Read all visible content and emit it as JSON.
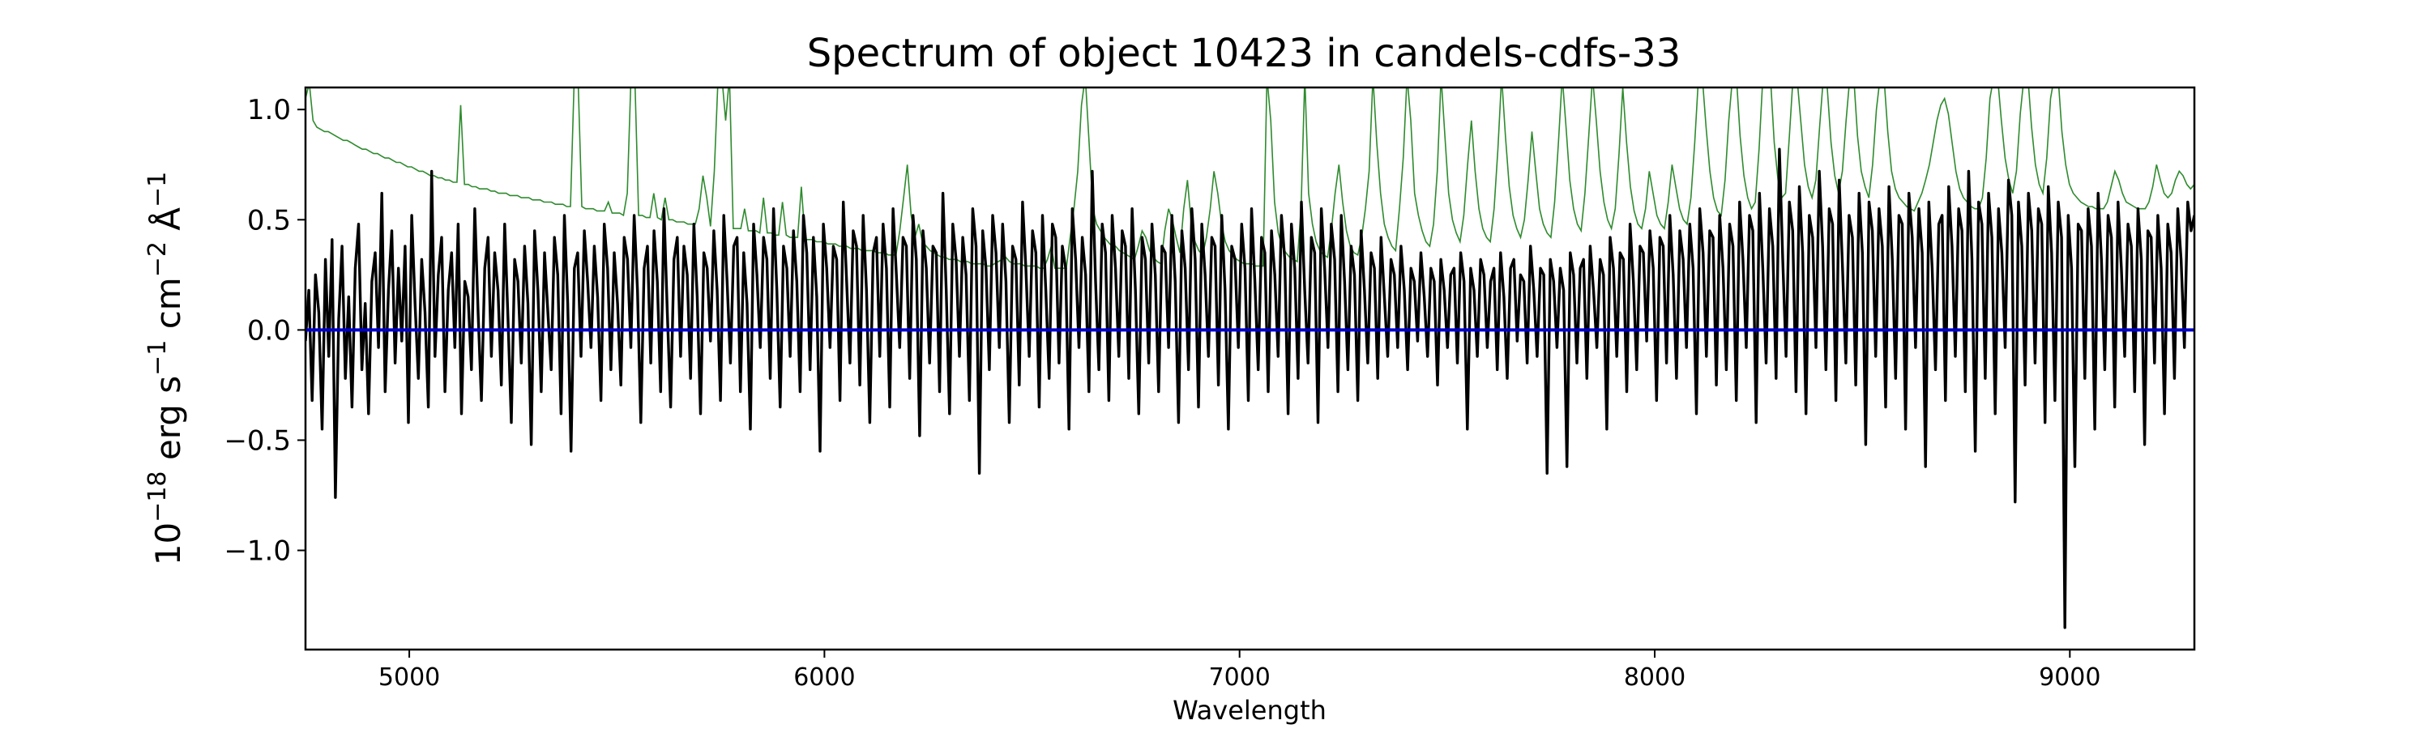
{
  "chart_data": {
    "type": "line",
    "title": "Spectrum of object 10423 in candels-cdfs-33",
    "xlabel": "Wavelength",
    "ylabel": {
      "base": "10",
      "base_exp": "−18",
      "unit1": " erg s",
      "unit1_exp": "−1",
      "unit2": " cm",
      "unit2_exp": "−2",
      "unit3": " Å",
      "unit3_exp": "−1"
    },
    "xlim": [
      4750,
      9300
    ],
    "ylim": [
      -1.45,
      1.1
    ],
    "x_ticks": [
      5000,
      6000,
      7000,
      8000,
      9000
    ],
    "x_tick_labels": [
      "5000",
      "6000",
      "7000",
      "8000",
      "9000"
    ],
    "y_ticks": [
      -1.0,
      -0.5,
      0.0,
      0.5,
      1.0
    ],
    "y_tick_labels": [
      "−1.0",
      "−0.5",
      "0.0",
      "0.5",
      "1.0"
    ],
    "grid": false,
    "colors": {
      "flux": "#000000",
      "error": "#2e8b2e",
      "zero": "#0000cc"
    },
    "series": [
      {
        "role": "flux",
        "x_start": 4750,
        "x_end": 9300,
        "values": [
          -0.05,
          0.18,
          -0.32,
          0.25,
          0.08,
          -0.45,
          0.32,
          -0.12,
          0.41,
          -0.76,
          0.05,
          0.38,
          -0.22,
          0.15,
          -0.35,
          0.28,
          0.48,
          -0.18,
          0.12,
          -0.38,
          0.22,
          0.35,
          -0.08,
          0.62,
          -0.28,
          0.18,
          0.45,
          -0.15,
          0.28,
          -0.05,
          0.38,
          -0.42,
          0.52,
          0.12,
          -0.22,
          0.32,
          0.08,
          -0.35,
          0.72,
          -0.12,
          0.25,
          0.42,
          -0.28,
          0.18,
          0.35,
          -0.08,
          0.48,
          -0.38,
          0.22,
          0.15,
          -0.18,
          0.55,
          0.08,
          -0.32,
          0.28,
          0.42,
          -0.12,
          0.35,
          0.18,
          -0.25,
          0.48,
          0.05,
          -0.42,
          0.32,
          0.22,
          -0.15,
          0.38,
          0.12,
          -0.52,
          0.45,
          0.18,
          -0.28,
          0.35,
          0.08,
          -0.18,
          0.42,
          0.25,
          -0.38,
          0.52,
          0.12,
          -0.55,
          0.28,
          0.35,
          -0.12,
          0.45,
          0.22,
          -0.08,
          0.38,
          0.15,
          -0.32,
          0.48,
          0.28,
          -0.18,
          0.35,
          0.12,
          -0.25,
          0.42,
          0.32,
          -0.08,
          0.52,
          0.18,
          -0.42,
          0.28,
          0.38,
          -0.15,
          0.45,
          0.22,
          -0.28,
          0.55,
          0.08,
          -0.35,
          0.32,
          0.42,
          -0.12,
          0.38,
          0.25,
          -0.22,
          0.48,
          0.15,
          -0.38,
          0.35,
          0.28,
          -0.05,
          0.45,
          0.18,
          -0.32,
          0.52,
          0.22,
          -0.15,
          0.38,
          0.42,
          -0.28,
          0.35,
          0.12,
          -0.45,
          0.48,
          0.25,
          -0.08,
          0.42,
          0.32,
          -0.22,
          0.55,
          0.18,
          -0.35,
          0.38,
          0.28,
          -0.12,
          0.45,
          0.22,
          -0.28,
          0.52,
          0.35,
          -0.18,
          0.42,
          0.15,
          -0.55,
          0.48,
          0.28,
          -0.08,
          0.38,
          0.32,
          -0.32,
          0.58,
          0.22,
          -0.15,
          0.45,
          0.38,
          -0.25,
          0.52,
          0.18,
          -0.42,
          0.35,
          0.42,
          -0.12,
          0.48,
          0.28,
          -0.35,
          0.55,
          0.25,
          -0.08,
          0.42,
          0.38,
          -0.22,
          0.52,
          0.32,
          -0.48,
          0.45,
          0.28,
          -0.15,
          0.38,
          0.35,
          -0.28,
          0.62,
          0.18,
          -0.38,
          0.48,
          0.32,
          -0.12,
          0.42,
          0.25,
          -0.32,
          0.55,
          0.38,
          -0.65,
          0.45,
          0.28,
          -0.18,
          0.52,
          0.35,
          -0.08,
          0.48,
          0.22,
          -0.42,
          0.38,
          0.32,
          -0.25,
          0.58,
          0.28,
          -0.12,
          0.45,
          0.35,
          -0.35,
          0.52,
          0.18,
          -0.22,
          0.48,
          0.42,
          -0.15,
          0.38,
          0.28,
          -0.45,
          0.55,
          0.32,
          -0.08,
          0.42,
          0.25,
          -0.28,
          0.72,
          0.22,
          -0.18,
          0.48,
          0.35,
          -0.32,
          0.52,
          0.28,
          -0.12,
          0.45,
          0.38,
          -0.22,
          0.55,
          0.18,
          -0.38,
          0.42,
          0.32,
          -0.15,
          0.48,
          0.25,
          -0.28,
          0.38,
          0.35,
          -0.08,
          0.52,
          0.22,
          -0.42,
          0.45,
          0.28,
          -0.18,
          0.55,
          0.32,
          -0.35,
          0.48,
          0.25,
          -0.12,
          0.42,
          0.38,
          -0.25,
          0.52,
          0.18,
          -0.45,
          0.38,
          0.32,
          -0.08,
          0.48,
          0.28,
          -0.32,
          0.55,
          0.22,
          -0.18,
          0.42,
          0.35,
          -0.28,
          0.45,
          0.25,
          -0.12,
          0.52,
          0.32,
          -0.38,
          0.48,
          0.28,
          -0.22,
          0.58,
          0.18,
          -0.15,
          0.42,
          0.35,
          -0.42,
          0.55,
          0.28,
          -0.08,
          0.48,
          0.32,
          -0.28,
          0.52,
          0.22,
          -0.18,
          0.38,
          0.25,
          -0.32,
          0.45,
          0.18,
          -0.15,
          0.35,
          0.28,
          -0.22,
          0.42,
          0.15,
          -0.12,
          0.32,
          0.25,
          -0.08,
          0.38,
          0.18,
          -0.18,
          0.28,
          0.22,
          -0.05,
          0.35,
          0.15,
          -0.12,
          0.28,
          0.22,
          -0.25,
          0.32,
          0.18,
          -0.08,
          0.25,
          0.28,
          -0.15,
          0.35,
          0.22,
          -0.45,
          0.28,
          0.18,
          -0.12,
          0.32,
          0.25,
          -0.08,
          0.22,
          0.28,
          -0.18,
          0.35,
          0.15,
          -0.22,
          0.28,
          0.32,
          -0.05,
          0.25,
          0.22,
          -0.15,
          0.38,
          0.18,
          -0.12,
          0.28,
          0.25,
          -0.65,
          0.32,
          0.22,
          -0.08,
          0.28,
          0.18,
          -0.62,
          0.35,
          0.25,
          -0.15,
          0.28,
          0.32,
          -0.22,
          0.38,
          0.18,
          -0.08,
          0.32,
          0.25,
          -0.45,
          0.42,
          0.28,
          -0.12,
          0.35,
          0.32,
          -0.28,
          0.48,
          0.22,
          -0.18,
          0.38,
          0.35,
          -0.05,
          0.45,
          0.28,
          -0.32,
          0.42,
          0.38,
          -0.15,
          0.52,
          0.25,
          -0.22,
          0.45,
          0.32,
          -0.08,
          0.48,
          0.28,
          -0.38,
          0.55,
          0.35,
          -0.12,
          0.45,
          0.42,
          -0.25,
          0.52,
          0.28,
          -0.18,
          0.48,
          0.38,
          -0.32,
          0.58,
          0.32,
          -0.08,
          0.52,
          0.45,
          -0.42,
          0.62,
          0.28,
          -0.15,
          0.55,
          0.38,
          -0.22,
          0.82,
          0.32,
          -0.12,
          0.58,
          0.45,
          -0.28,
          0.65,
          0.35,
          -0.38,
          0.52,
          0.42,
          -0.08,
          0.72,
          0.38,
          -0.18,
          0.55,
          0.48,
          -0.32,
          0.68,
          0.28,
          -0.15,
          0.52,
          0.42,
          -0.25,
          0.62,
          0.35,
          -0.52,
          0.58,
          0.45,
          -0.12,
          0.55,
          0.38,
          -0.35,
          0.65,
          0.32,
          -0.22,
          0.52,
          0.48,
          -0.45,
          0.62,
          0.42,
          -0.08,
          0.55,
          0.35,
          -0.62,
          0.58,
          0.28,
          -0.18,
          0.48,
          0.52,
          -0.32,
          0.65,
          0.38,
          -0.12,
          0.55,
          0.45,
          -0.28,
          0.72,
          0.32,
          -0.55,
          0.58,
          0.48,
          -0.22,
          0.62,
          0.42,
          -0.38,
          0.55,
          0.35,
          -0.08,
          0.68,
          0.52,
          -0.78,
          0.58,
          0.38,
          -0.25,
          0.62,
          0.45,
          -0.15,
          0.55,
          0.48,
          -0.42,
          0.65,
          0.35,
          -0.32,
          0.58,
          0.42,
          -1.35,
          0.52,
          0.28,
          -0.62,
          0.48,
          0.45,
          -0.22,
          0.55,
          0.38,
          -0.45,
          0.62,
          0.32,
          -0.18,
          0.52,
          0.42,
          -0.35,
          0.58,
          0.28,
          -0.12,
          0.48,
          0.38,
          -0.28,
          0.55,
          0.32,
          -0.52,
          0.45,
          0.42,
          -0.15,
          0.52,
          0.28,
          -0.38,
          0.48,
          0.35,
          -0.22,
          0.55,
          0.32,
          -0.08,
          0.58,
          0.45,
          0.52
        ]
      },
      {
        "role": "error",
        "x_start": 4750,
        "x_end": 9300,
        "values": [
          1.05,
          1.12,
          0.95,
          0.92,
          0.91,
          0.9,
          0.9,
          0.89,
          0.88,
          0.87,
          0.86,
          0.86,
          0.85,
          0.84,
          0.83,
          0.82,
          0.82,
          0.81,
          0.8,
          0.8,
          0.79,
          0.78,
          0.78,
          0.77,
          0.76,
          0.76,
          0.75,
          0.74,
          0.74,
          0.73,
          0.72,
          0.72,
          0.71,
          0.7,
          0.7,
          0.69,
          0.69,
          0.68,
          0.68,
          0.67,
          0.67,
          1.02,
          0.66,
          0.66,
          0.65,
          0.65,
          0.64,
          0.64,
          0.64,
          0.63,
          0.63,
          0.62,
          0.62,
          0.62,
          0.61,
          0.61,
          0.61,
          0.6,
          0.6,
          0.6,
          0.59,
          0.59,
          0.59,
          0.58,
          0.58,
          0.58,
          0.57,
          0.57,
          0.57,
          0.56,
          0.56,
          1.15,
          1.15,
          0.56,
          0.55,
          0.55,
          0.55,
          0.54,
          0.54,
          0.54,
          0.58,
          0.53,
          0.53,
          0.53,
          0.52,
          0.62,
          1.15,
          1.15,
          0.52,
          0.52,
          0.51,
          0.51,
          0.62,
          0.51,
          0.5,
          0.6,
          0.5,
          0.5,
          0.49,
          0.49,
          0.49,
          0.48,
          0.48,
          0.48,
          0.55,
          0.7,
          0.6,
          0.47,
          0.72,
          1.15,
          1.15,
          0.95,
          1.15,
          0.46,
          0.46,
          0.46,
          0.55,
          0.45,
          0.45,
          0.45,
          0.44,
          0.6,
          0.44,
          0.44,
          0.43,
          0.43,
          0.58,
          0.43,
          0.42,
          0.42,
          0.42,
          0.65,
          0.41,
          0.41,
          0.41,
          0.4,
          0.4,
          0.4,
          0.39,
          0.39,
          0.39,
          0.38,
          0.38,
          0.38,
          0.37,
          0.37,
          0.37,
          0.36,
          0.36,
          0.36,
          0.36,
          0.35,
          0.35,
          0.35,
          0.34,
          0.34,
          0.34,
          0.45,
          0.6,
          0.75,
          0.52,
          0.42,
          0.48,
          0.4,
          0.38,
          0.36,
          0.35,
          0.34,
          0.33,
          0.33,
          0.32,
          0.32,
          0.32,
          0.31,
          0.31,
          0.31,
          0.3,
          0.3,
          0.3,
          0.3,
          0.29,
          0.29,
          0.3,
          0.31,
          0.32,
          0.33,
          0.31,
          0.3,
          0.3,
          0.3,
          0.29,
          0.29,
          0.29,
          0.29,
          0.28,
          0.28,
          0.32,
          0.38,
          0.28,
          0.28,
          0.28,
          0.28,
          0.42,
          0.55,
          0.72,
          1.02,
          1.15,
          0.85,
          0.55,
          0.48,
          0.45,
          0.42,
          0.4,
          0.38,
          0.38,
          0.36,
          0.35,
          0.34,
          0.33,
          0.32,
          0.38,
          0.45,
          0.42,
          0.36,
          0.33,
          0.31,
          0.3,
          0.45,
          0.55,
          0.5,
          0.42,
          0.35,
          0.55,
          0.68,
          0.48,
          0.4,
          0.36,
          0.34,
          0.42,
          0.55,
          0.72,
          0.62,
          0.48,
          0.4,
          0.36,
          0.34,
          0.32,
          0.31,
          0.3,
          0.3,
          0.3,
          0.29,
          0.29,
          0.29,
          1.15,
          0.95,
          0.58,
          0.44,
          0.38,
          0.35,
          0.33,
          0.32,
          0.31,
          0.55,
          1.15,
          0.62,
          0.48,
          0.4,
          0.36,
          0.34,
          0.33,
          0.45,
          0.62,
          0.75,
          0.58,
          0.45,
          0.38,
          0.35,
          0.34,
          0.42,
          0.55,
          0.72,
          1.15,
          0.85,
          0.62,
          0.48,
          0.42,
          0.38,
          0.36,
          0.55,
          0.78,
          1.15,
          0.95,
          0.62,
          0.52,
          0.45,
          0.4,
          0.38,
          0.48,
          0.72,
          1.15,
          0.88,
          0.62,
          0.5,
          0.44,
          0.4,
          0.52,
          0.75,
          0.95,
          0.72,
          0.55,
          0.46,
          0.42,
          0.4,
          0.55,
          0.82,
          1.15,
          0.88,
          0.65,
          0.52,
          0.46,
          0.42,
          0.5,
          0.68,
          0.9,
          0.72,
          0.55,
          0.48,
          0.44,
          0.42,
          0.58,
          0.85,
          1.15,
          0.92,
          0.68,
          0.55,
          0.48,
          0.45,
          0.62,
          0.88,
          1.15,
          0.95,
          0.72,
          0.58,
          0.5,
          0.46,
          0.55,
          0.8,
          1.1,
          0.85,
          0.65,
          0.54,
          0.48,
          0.46,
          0.55,
          0.72,
          0.62,
          0.52,
          0.48,
          0.46,
          0.58,
          0.75,
          0.65,
          0.55,
          0.5,
          0.48,
          0.6,
          0.85,
          1.15,
          1.15,
          0.92,
          0.72,
          0.6,
          0.54,
          0.52,
          0.68,
          0.95,
          1.15,
          1.15,
          0.88,
          0.7,
          0.6,
          0.55,
          0.58,
          0.82,
          1.15,
          1.15,
          1.15,
          0.85,
          0.68,
          0.6,
          0.62,
          0.88,
          1.15,
          1.15,
          0.95,
          0.75,
          0.65,
          0.6,
          0.68,
          0.92,
          1.15,
          1.1,
          0.85,
          0.7,
          0.62,
          0.72,
          0.95,
          1.15,
          1.15,
          0.88,
          0.72,
          0.65,
          0.6,
          0.75,
          1.0,
          1.15,
          1.15,
          0.9,
          0.72,
          0.64,
          0.6,
          0.58,
          0.56,
          0.55,
          0.54,
          0.58,
          0.62,
          0.68,
          0.75,
          0.85,
          0.95,
          1.02,
          1.05,
          0.98,
          0.85,
          0.72,
          0.64,
          0.6,
          0.58,
          0.56,
          0.55,
          0.55,
          0.6,
          0.78,
          1.05,
          1.15,
          1.15,
          0.95,
          0.78,
          0.68,
          0.62,
          0.72,
          0.98,
          1.15,
          1.15,
          0.92,
          0.75,
          0.66,
          0.62,
          0.78,
          1.05,
          1.15,
          1.15,
          0.9,
          0.75,
          0.66,
          0.62,
          0.6,
          0.58,
          0.57,
          0.56,
          0.56,
          0.55,
          0.55,
          0.55,
          0.58,
          0.65,
          0.72,
          0.68,
          0.62,
          0.58,
          0.57,
          0.56,
          0.55,
          0.55,
          0.55,
          0.58,
          0.65,
          0.75,
          0.68,
          0.62,
          0.6,
          0.62,
          0.68,
          0.72,
          0.7,
          0.66,
          0.64,
          0.66
        ]
      }
    ],
    "zero_line_y": 0
  }
}
